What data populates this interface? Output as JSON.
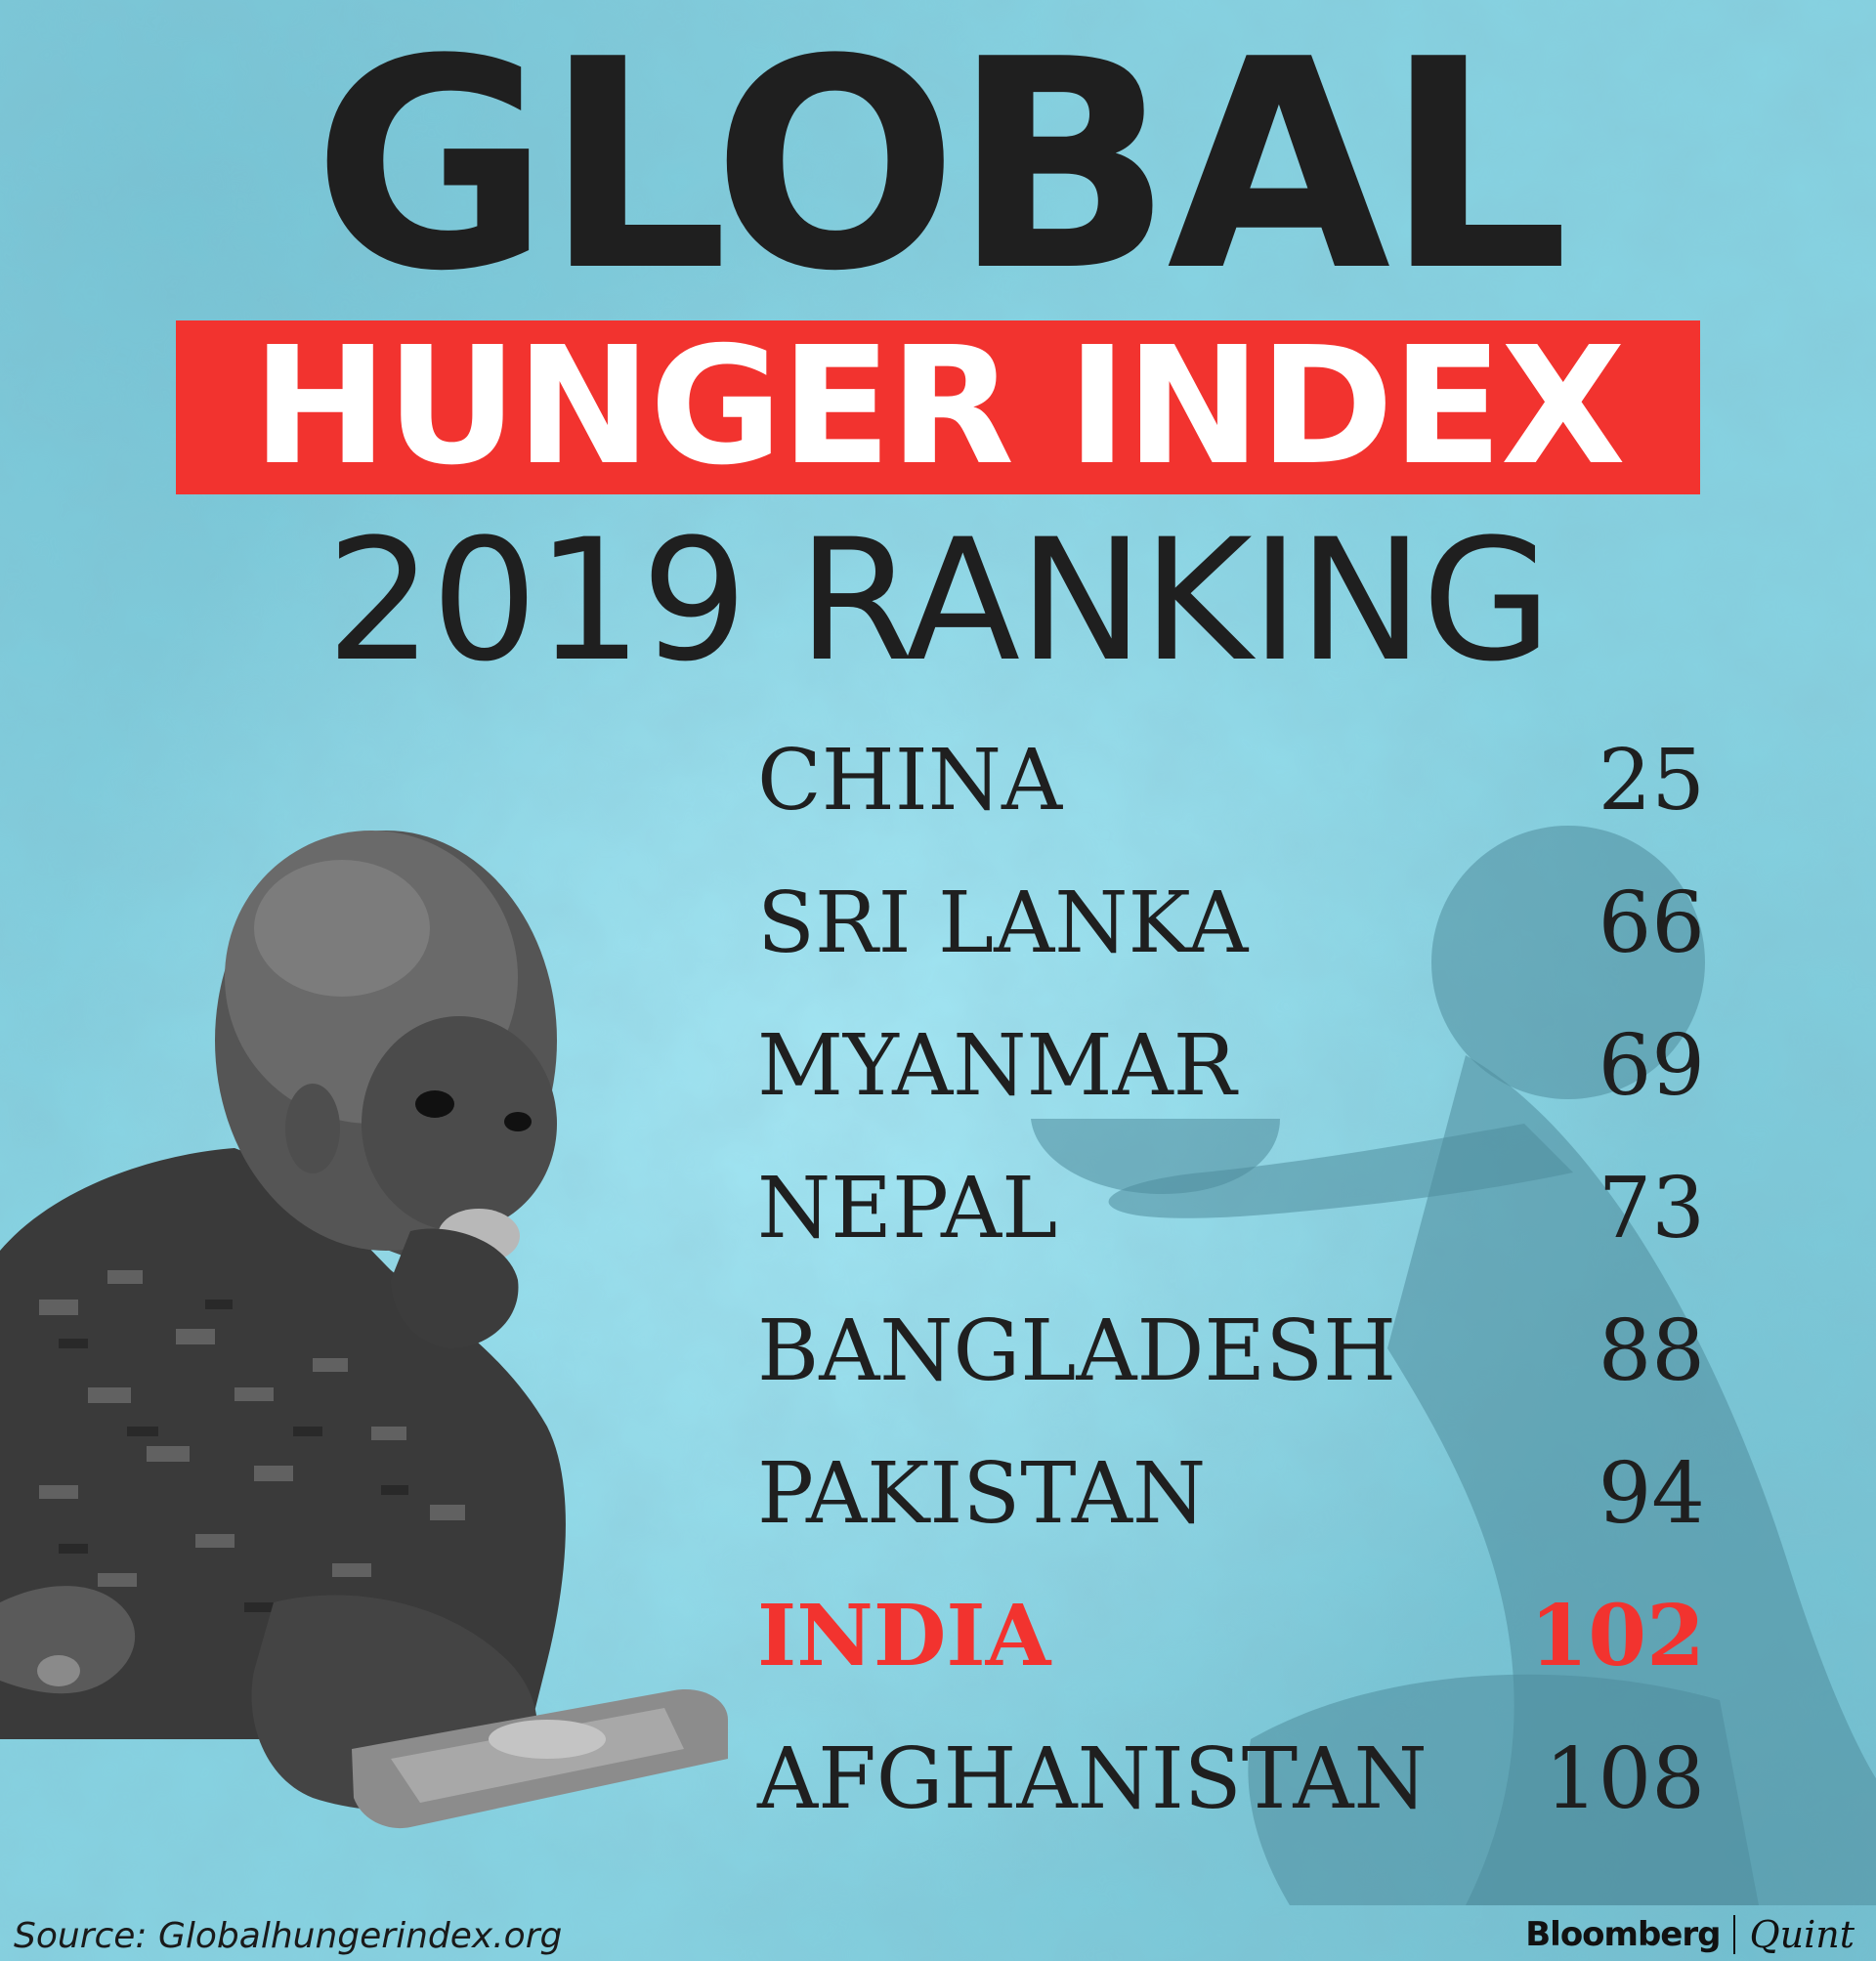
{
  "title": {
    "line1": "GLOBAL",
    "line2": "HUNGER INDEX",
    "line3": "2019 RANKING"
  },
  "rankings": [
    {
      "country": "CHINA",
      "rank": "25",
      "highlight": false
    },
    {
      "country": "SRI LANKA",
      "rank": "66",
      "highlight": false
    },
    {
      "country": "MYANMAR",
      "rank": "69",
      "highlight": false
    },
    {
      "country": "NEPAL",
      "rank": "73",
      "highlight": false
    },
    {
      "country": "BANGLADESH",
      "rank": "88",
      "highlight": false
    },
    {
      "country": "PAKISTAN",
      "rank": "94",
      "highlight": false
    },
    {
      "country": "INDIA",
      "rank": "102",
      "highlight": true
    },
    {
      "country": "AFGHANISTAN",
      "rank": "108",
      "highlight": false
    }
  ],
  "footer": {
    "source": "Source: Globalhungerindex.org",
    "brand_left": "Bloomberg",
    "brand_right": "Quint"
  },
  "colors": {
    "background": "#86d3e2",
    "accent_red": "#f2332f",
    "text_dark": "#1f1f1f"
  },
  "icons": [
    "child-eating-photo",
    "shadow-figure-with-bowl"
  ]
}
